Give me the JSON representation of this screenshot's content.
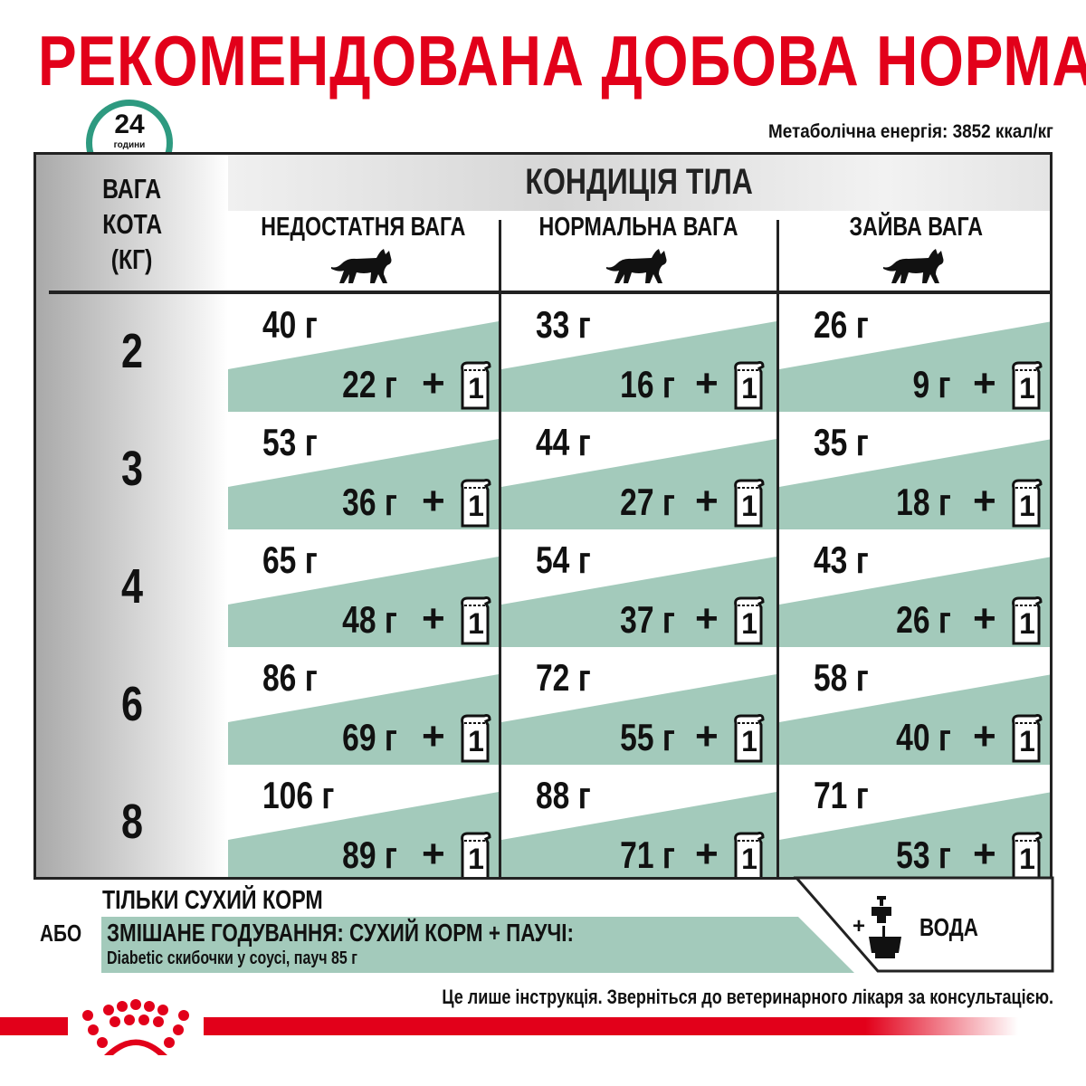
{
  "title": "РЕКОМЕНДОВАНА ДОБОВА НОРМА",
  "energy": "Метаболічна енергія: 3852 ккал/кг",
  "clock": {
    "number": "24",
    "label": "години"
  },
  "table": {
    "weight_header": [
      "ВАГА",
      "КОТА",
      "(КГ)"
    ],
    "condition_header": "КОНДИЦІЯ ТІЛА",
    "columns": [
      "НЕДОСТАТНЯ ВАГА",
      "НОРМАЛЬНА ВАГА",
      "ЗАЙВА ВАГА"
    ],
    "plus": "+",
    "pouch_count": "1",
    "rows": [
      {
        "weight": "2",
        "cells": [
          {
            "dry": "40 г",
            "wet": "22 г"
          },
          {
            "dry": "33 г",
            "wet": "16 г"
          },
          {
            "dry": "26 г",
            "wet": "9 г"
          }
        ]
      },
      {
        "weight": "3",
        "cells": [
          {
            "dry": "53 г",
            "wet": "36 г"
          },
          {
            "dry": "44 г",
            "wet": "27 г"
          },
          {
            "dry": "35 г",
            "wet": "18 г"
          }
        ]
      },
      {
        "weight": "4",
        "cells": [
          {
            "dry": "65 г",
            "wet": "48 г"
          },
          {
            "dry": "54 г",
            "wet": "37 г"
          },
          {
            "dry": "43 г",
            "wet": "26 г"
          }
        ]
      },
      {
        "weight": "6",
        "cells": [
          {
            "dry": "86 г",
            "wet": "69 г"
          },
          {
            "dry": "72 г",
            "wet": "55 г"
          },
          {
            "dry": "58 г",
            "wet": "40 г"
          }
        ]
      },
      {
        "weight": "8",
        "cells": [
          {
            "dry": "106 г",
            "wet": "89 г"
          },
          {
            "dry": "88 г",
            "wet": "71 г"
          },
          {
            "dry": "71 г",
            "wet": "53 г"
          }
        ]
      }
    ]
  },
  "legend": {
    "dry_only": "ТІЛЬКИ СУХИЙ КОРМ",
    "or": "АБО",
    "mixed": "ЗМІШАНЕ ГОДУВАННЯ: СУХИЙ КОРМ + ПАУЧІ:",
    "mixed_detail": "Diabetic скибочки у соусі, пауч 85 г",
    "water_plus": "+",
    "water": "ВОДА"
  },
  "disclaimer": "Це лише інструкція. Зверніться до ветеринарного лікаря за консультацією.",
  "colors": {
    "brand_red": "#e2001a",
    "teal": "#a3cabb",
    "clock": "#2e9a80"
  }
}
